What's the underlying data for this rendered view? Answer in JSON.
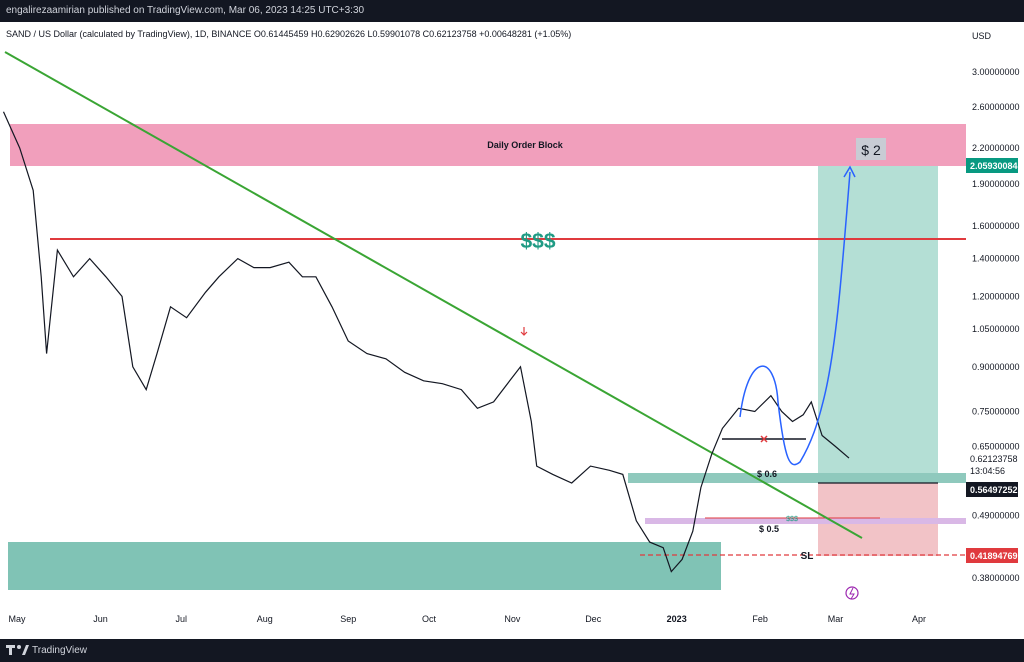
{
  "header": {
    "publish_line": "engalirezaamirian published on TradingView.com, Mar 06, 2023 14:25 UTC+3:30",
    "symbol_info": "SAND / US Dollar (calculated by TradingView), 1D, BINANCE  O0.61445459  H0.62902626  L0.59901078  C0.62123758  +0.00648281 (+1.05%)"
  },
  "footer": {
    "brand": "TradingView"
  },
  "chart_data": {
    "type": "candlestick",
    "title": "SAND / US Dollar (calculated by TradingView), 1D, BINANCE",
    "ohlc": {
      "open": 0.61445459,
      "high": 0.62902626,
      "low": 0.59901078,
      "close": 0.62123758,
      "change": 0.00648281,
      "change_pct": 1.05
    },
    "currency": "USD",
    "y_scale": "log",
    "y_ticks": [
      "3.00000000",
      "2.60000000",
      "2.20000000",
      "1.90000000",
      "1.60000000",
      "1.40000000",
      "1.20000000",
      "1.05000000",
      "0.90000000",
      "0.75000000",
      "0.65000000",
      "0.49000000",
      "0.38000000"
    ],
    "x_ticks": [
      "May",
      "Jun",
      "Jul",
      "Aug",
      "Sep",
      "Oct",
      "Nov",
      "Dec",
      "2023",
      "Feb",
      "Mar",
      "Apr"
    ],
    "price_labels": {
      "target": "2.05930084",
      "last_price": "0.62123758",
      "countdown": "13:04:56",
      "entry": "0.56497252",
      "stop": "0.41894769"
    },
    "annotations": {
      "order_block": "Daily Order Block",
      "liquidity": "$$$",
      "target_text": "$ 2",
      "level_06": "$ 0.6",
      "level_05": "$ 0.5",
      "small_liquidity": "$$$",
      "stop_loss": "SL"
    },
    "path_points": [
      [
        "2022-04-26",
        2.55
      ],
      [
        "2022-05-02",
        2.2
      ],
      [
        "2022-05-07",
        1.85
      ],
      [
        "2022-05-10",
        1.3
      ],
      [
        "2022-05-12",
        0.95
      ],
      [
        "2022-05-16",
        1.45
      ],
      [
        "2022-05-22",
        1.3
      ],
      [
        "2022-05-28",
        1.4
      ],
      [
        "2022-06-03",
        1.3
      ],
      [
        "2022-06-09",
        1.2
      ],
      [
        "2022-06-13",
        0.9
      ],
      [
        "2022-06-18",
        0.82
      ],
      [
        "2022-06-22",
        0.95
      ],
      [
        "2022-06-27",
        1.15
      ],
      [
        "2022-07-03",
        1.1
      ],
      [
        "2022-07-10",
        1.22
      ],
      [
        "2022-07-15",
        1.3
      ],
      [
        "2022-07-22",
        1.4
      ],
      [
        "2022-07-28",
        1.35
      ],
      [
        "2022-08-03",
        1.35
      ],
      [
        "2022-08-10",
        1.38
      ],
      [
        "2022-08-15",
        1.3
      ],
      [
        "2022-08-20",
        1.3
      ],
      [
        "2022-08-26",
        1.15
      ],
      [
        "2022-09-01",
        1.0
      ],
      [
        "2022-09-08",
        0.95
      ],
      [
        "2022-09-15",
        0.93
      ],
      [
        "2022-09-22",
        0.88
      ],
      [
        "2022-09-29",
        0.85
      ],
      [
        "2022-10-06",
        0.84
      ],
      [
        "2022-10-13",
        0.82
      ],
      [
        "2022-10-19",
        0.76
      ],
      [
        "2022-10-25",
        0.78
      ],
      [
        "2022-10-31",
        0.85
      ],
      [
        "2022-11-04",
        0.9
      ],
      [
        "2022-11-08",
        0.72
      ],
      [
        "2022-11-10",
        0.6
      ],
      [
        "2022-11-16",
        0.58
      ],
      [
        "2022-11-23",
        0.56
      ],
      [
        "2022-11-30",
        0.6
      ],
      [
        "2022-12-07",
        0.59
      ],
      [
        "2022-12-12",
        0.58
      ],
      [
        "2022-12-17",
        0.48
      ],
      [
        "2022-12-22",
        0.44
      ],
      [
        "2022-12-27",
        0.43
      ],
      [
        "2022-12-30",
        0.39
      ],
      [
        "2023-01-03",
        0.41
      ],
      [
        "2023-01-07",
        0.46
      ],
      [
        "2023-01-10",
        0.55
      ],
      [
        "2023-01-14",
        0.63
      ],
      [
        "2023-01-18",
        0.7
      ],
      [
        "2023-01-24",
        0.76
      ],
      [
        "2023-01-30",
        0.75
      ],
      [
        "2023-02-05",
        0.8
      ],
      [
        "2023-02-09",
        0.75
      ],
      [
        "2023-02-13",
        0.72
      ],
      [
        "2023-02-17",
        0.74
      ],
      [
        "2023-02-20",
        0.78
      ],
      [
        "2023-02-24",
        0.68
      ],
      [
        "2023-03-01",
        0.65
      ],
      [
        "2023-03-06",
        0.62
      ]
    ]
  }
}
